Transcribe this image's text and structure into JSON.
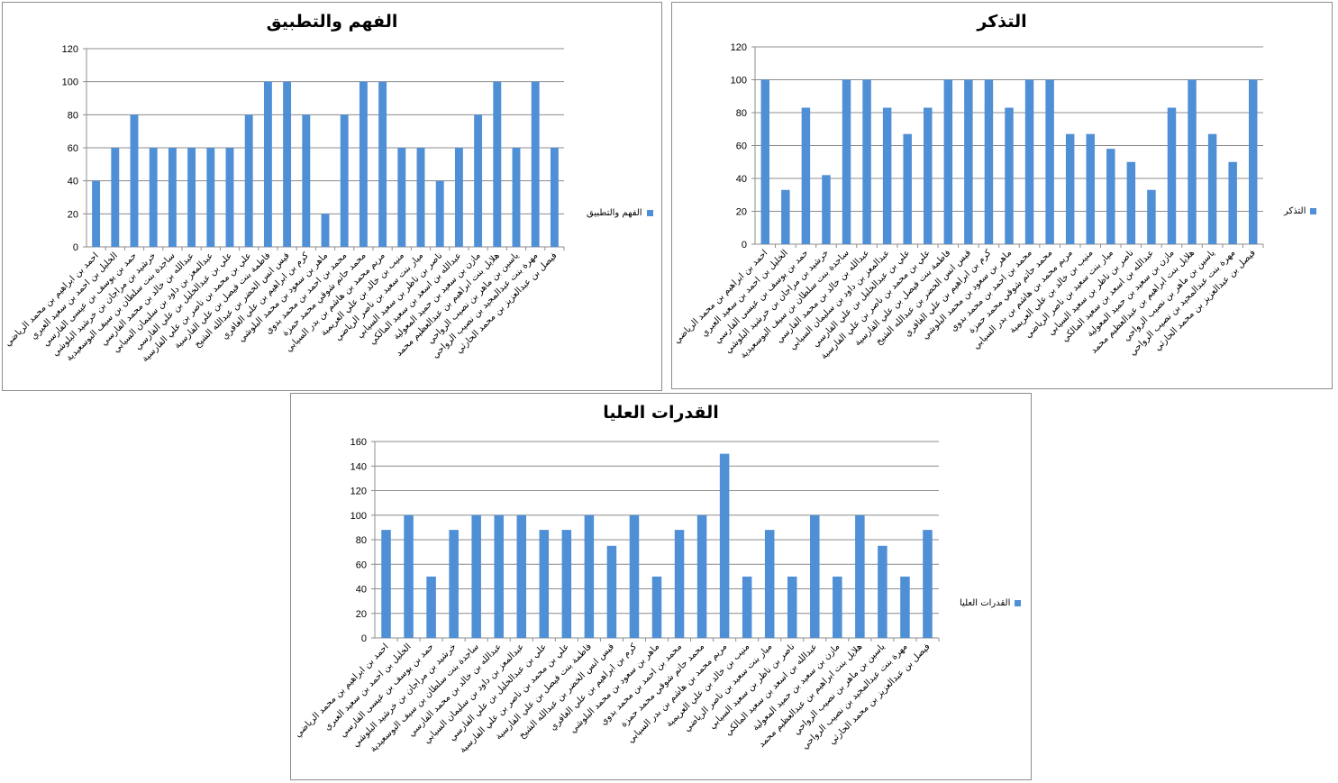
{
  "colors": {
    "bar": "#4f8fd6",
    "grid": "#8c8c8c",
    "axis": "#8c8c8c"
  },
  "chart_data": [
    {
      "type": "bar",
      "title": "الفهم والتطبيق",
      "legend": "الفهم والتطبيق",
      "legend_position": "right",
      "grid": true,
      "ylim": [
        0,
        120
      ],
      "yticks": [
        "0",
        "20",
        "40",
        "60",
        "80",
        "100",
        "120"
      ],
      "categories": [
        "احمد بن ابراهيم بن محمد الرياضي",
        "الخليل بن احمد بن سعيد العبري",
        "حمد بن يوسف بن عيسى الفارسي",
        "خرشيد بن مراجان بن خرشيد البلوشي",
        "ساجدة بنت سلطان بن سيف البوسعيدية",
        "عبدالله بن خالد بن محمد الفارسي",
        "عبدالمعز بن داود بن سليمان السيابي",
        "علي بن عبدالخليل بن علي الفارسي",
        "علي بن محمد بن ناصر بن علي الفارسية",
        "فاطمة بنت فيصل بن علي الفارسية",
        "قيس انس الخضر بن عبدالله الشيخ",
        "كرم بن ابراهيم بن علي الغافري",
        "ماهر بن سعود بن محمد البلوشي",
        "محمد بن احمد بن محمد بدوي",
        "محمد حاتم شوقي محمد حمزة",
        "مريم محمد بن هاشم بن بدر السيابي",
        "منيب بن خالد بن علي العريمية",
        "ميار بنت سعيد بن ناصر الرياضي",
        "ناصر بن ناظر بن سعيد السيابي",
        "عبدالله بن اسعد بن سعيد المالكي",
        "مازن بن سعيد بن حميد المعولية",
        "هلايل بنت ابراهيم بن عبدالعظيم محمد",
        "ياسين بن ماهر بن نصيب الرواحي",
        "مهرة بنت عبدالمجيد بن نصيب الرواحي",
        "فيصل بن عبدالعزيز بن محمد الحارثي"
      ],
      "values": [
        40,
        60,
        80,
        60,
        60,
        60,
        60,
        60,
        80,
        100,
        100,
        80,
        20,
        80,
        100,
        100,
        60,
        60,
        40,
        60,
        80,
        100,
        60,
        100,
        60
      ]
    },
    {
      "type": "bar",
      "title": "التذكر",
      "legend": "التذكر",
      "legend_position": "right",
      "grid": true,
      "ylim": [
        0,
        120
      ],
      "yticks": [
        "0",
        "20",
        "40",
        "60",
        "80",
        "100",
        "120"
      ],
      "categories": [
        "احمد بن ابراهيم بن محمد الرياضي",
        "الخليل بن احمد بن سعيد العبري",
        "حمد بن يوسف بن عيسى الفارسي",
        "خرشيد بن مراجان بن خرشيد البلوشي",
        "ساجدة بنت سلطان بن سيف البوسعيدية",
        "عبدالله بن خالد بن محمد الفارسي",
        "عبدالمعز بن داود بن سليمان السيابي",
        "علي بن عبدالخليل بن علي الفارسي",
        "علي بن محمد بن ناصر بن علي الفارسية",
        "فاطمة بنت فيصل بن علي الفارسية",
        "قيس انس الخضر بن عبدالله الشيخ",
        "كرم بن ابراهيم بن علي الغافري",
        "ماهر بن سعود بن محمد البلوشي",
        "محمد بن احمد بن محمد بدوي",
        "محمد حاتم شوقي محمد حمزة",
        "مريم محمد بن هاشم بن بدر السيابي",
        "منيب بن خالد بن علي العريمية",
        "ميار بنت سعيد بن ناصر الرياضي",
        "ناصر بن ناظر بن سعيد السيابي",
        "عبدالله بن اسعد بن سعيد المالكي",
        "مازن بن سعيد بن حميد المعولية",
        "هلايل بنت ابراهيم بن عبدالعظيم محمد",
        "ياسين بن ماهر بن نصيب الرواحي",
        "مهرة بنت عبدالمجيد بن نصيب الرواحي",
        "فيصل بن عبدالعزيز بن محمد الحارثي"
      ],
      "values": [
        100,
        33,
        83,
        42,
        100,
        100,
        83,
        67,
        83,
        100,
        100,
        100,
        83,
        100,
        100,
        67,
        67,
        58,
        50,
        33,
        83,
        100,
        67,
        50,
        100
      ]
    },
    {
      "type": "bar",
      "title": "القدرات العليا",
      "legend": "القدرات العليا",
      "legend_position": "right",
      "grid": true,
      "ylim": [
        0,
        160
      ],
      "yticks": [
        "0",
        "20",
        "40",
        "60",
        "80",
        "100",
        "120",
        "140",
        "160"
      ],
      "categories": [
        "احمد بن ابراهيم بن محمد الرياضي",
        "الخليل بن احمد بن سعيد العبري",
        "حمد بن يوسف بن عيسى الفارسي",
        "خرشيد بن مراجان بن خرشيد البلوشي",
        "ساجدة بنت سلطان بن سيف البوسعيدية",
        "عبدالله بن خالد بن محمد الفارسي",
        "عبدالمعز بن داود بن سليمان السيابي",
        "علي بن عبدالخليل بن علي الفارسي",
        "علي بن محمد بن ناصر بن علي الفارسية",
        "فاطمة بنت فيصل بن علي الفارسية",
        "قيس انس الخضر بن عبدالله الشيخ",
        "كرم بن ابراهيم بن علي الغافري",
        "ماهر بن سعود بن محمد البلوشي",
        "محمد بن احمد بن محمد بدوي",
        "محمد حاتم شوقي محمد حمزة",
        "مريم محمد بن هاشم بن بدر السيابي",
        "منيب بن خالد بن علي العريمية",
        "ميار بنت سعيد بن ناصر الرياضي",
        "ناصر بن ناظر بن سعيد السيابي",
        "عبدالله بن اسعد بن سعيد المالكي",
        "مازن بن سعيد بن حميد المعولية",
        "هلايل بنت ابراهيم بن عبدالعظيم محمد",
        "ياسين بن ماهر بن نصيب الرواحي",
        "مهرة بنت عبدالمجيد بن نصيب الرواحي",
        "فيصل بن عبدالعزيز بن محمد الحارثي"
      ],
      "values": [
        88,
        100,
        50,
        88,
        100,
        100,
        100,
        88,
        88,
        100,
        75,
        100,
        50,
        88,
        100,
        150,
        50,
        88,
        50,
        100,
        50,
        100,
        75,
        50,
        88
      ]
    }
  ]
}
